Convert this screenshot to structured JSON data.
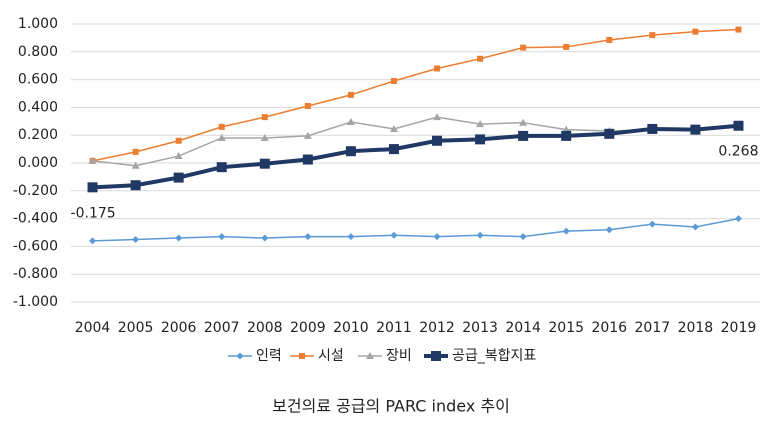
{
  "chart_data": {
    "type": "line",
    "title": "보건의료 공급의 PARC index 추이",
    "categories": [
      "2004",
      "2005",
      "2006",
      "2007",
      "2008",
      "2009",
      "2010",
      "2011",
      "2012",
      "2013",
      "2014",
      "2015",
      "2016",
      "2017",
      "2018",
      "2019"
    ],
    "ylim": [
      -1,
      1
    ],
    "yticks": [
      {
        "value": -1,
        "label": "-1.000"
      },
      {
        "value": -0.8,
        "label": "-0.800"
      },
      {
        "value": -0.6,
        "label": "-0.600"
      },
      {
        "value": -0.4,
        "label": "-0.400"
      },
      {
        "value": -0.2,
        "label": "-0.200"
      },
      {
        "value": 0,
        "label": "0.000"
      },
      {
        "value": 0.2,
        "label": "0.200"
      },
      {
        "value": 0.4,
        "label": "0.400"
      },
      {
        "value": 0.6,
        "label": "0.600"
      },
      {
        "value": 0.8,
        "label": "0.800"
      },
      {
        "value": 1,
        "label": "1.000"
      }
    ],
    "grid": true,
    "legend": "bottom",
    "series": [
      {
        "name": "인력",
        "color": "#5b9bd5",
        "marker": "diamond",
        "values": [
          -0.56,
          -0.55,
          -0.54,
          -0.53,
          -0.54,
          -0.53,
          -0.53,
          -0.52,
          -0.53,
          -0.52,
          -0.53,
          -0.49,
          -0.48,
          -0.44,
          -0.46,
          -0.4
        ]
      },
      {
        "name": "시설",
        "color": "#ed7d31",
        "marker": "square",
        "values": [
          0.015,
          0.08,
          0.16,
          0.26,
          0.33,
          0.41,
          0.49,
          0.59,
          0.68,
          0.75,
          0.83,
          0.835,
          0.885,
          0.92,
          0.945,
          0.96
        ]
      },
      {
        "name": "장비",
        "color": "#a5a5a5",
        "marker": "triangle",
        "values": [
          0.015,
          -0.02,
          0.05,
          0.18,
          0.18,
          0.195,
          0.295,
          0.245,
          0.33,
          0.28,
          0.29,
          0.24,
          0.23,
          0.24,
          0.245,
          0.26
        ]
      },
      {
        "name": "공급_복합지표",
        "color": "#203864",
        "marker": "big-square",
        "values": [
          -0.175,
          -0.16,
          -0.105,
          -0.03,
          -0.005,
          0.025,
          0.085,
          0.1,
          0.16,
          0.17,
          0.195,
          0.195,
          0.21,
          0.245,
          0.24,
          0.268
        ],
        "value_labels": [
          "-0.175",
          null,
          null,
          null,
          null,
          null,
          null,
          null,
          null,
          null,
          null,
          null,
          null,
          null,
          null,
          "0.268"
        ]
      }
    ]
  }
}
